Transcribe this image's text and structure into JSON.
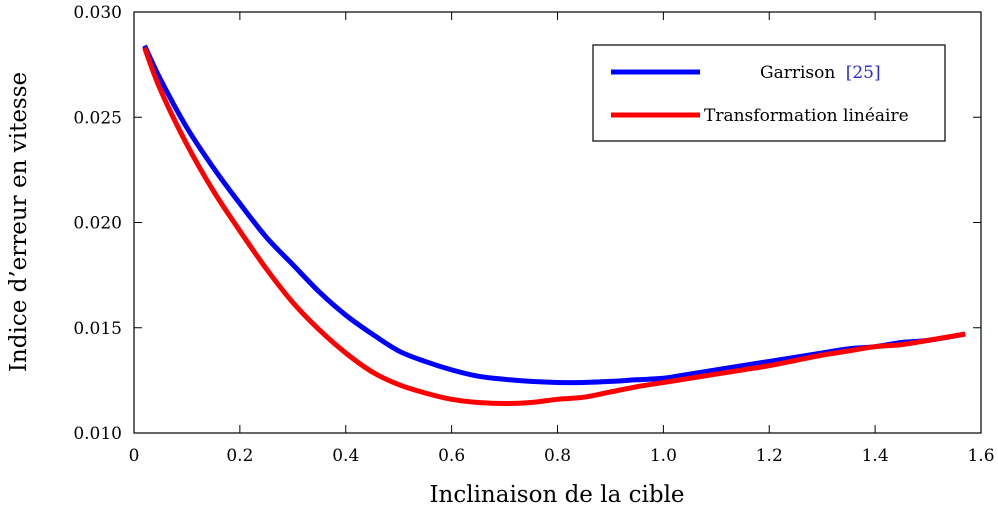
{
  "chart_data": {
    "type": "line",
    "xlabel": "Inclinaison de la cible",
    "ylabel": "Indice d’erreur en vitesse",
    "xlim": [
      0,
      1.6
    ],
    "ylim": [
      0.01,
      0.03
    ],
    "x_ticks": [
      "0",
      "0.2",
      "0.4",
      "0.6",
      "0.8",
      "1.0",
      "1.2",
      "1.4",
      "1.6"
    ],
    "y_ticks": [
      "0.010",
      "0.015",
      "0.020",
      "0.025",
      "0.030"
    ],
    "grid": false,
    "legend_position": "top-right",
    "series": [
      {
        "name": "Garrison",
        "reference": "[25]",
        "color": "#0000ff",
        "x": [
          0.02,
          0.05,
          0.1,
          0.15,
          0.2,
          0.25,
          0.3,
          0.35,
          0.4,
          0.45,
          0.5,
          0.55,
          0.6,
          0.65,
          0.7,
          0.75,
          0.8,
          0.85,
          0.9,
          0.95,
          1.0,
          1.05,
          1.1,
          1.15,
          1.2,
          1.25,
          1.3,
          1.35,
          1.4,
          1.45,
          1.5,
          1.57
        ],
        "y": [
          0.0284,
          0.0268,
          0.0245,
          0.0226,
          0.0209,
          0.0193,
          0.018,
          0.0167,
          0.0156,
          0.0147,
          0.0139,
          0.0134,
          0.013,
          0.0127,
          0.01255,
          0.01245,
          0.0124,
          0.0124,
          0.01245,
          0.01253,
          0.0126,
          0.0128,
          0.013,
          0.0132,
          0.0134,
          0.0136,
          0.0138,
          0.014,
          0.0141,
          0.0143,
          0.0144,
          0.0147
        ]
      },
      {
        "name": "Transformation linéaire",
        "color": "#ff0000",
        "x": [
          0.02,
          0.05,
          0.1,
          0.15,
          0.2,
          0.25,
          0.3,
          0.35,
          0.4,
          0.45,
          0.5,
          0.55,
          0.6,
          0.65,
          0.7,
          0.75,
          0.8,
          0.85,
          0.9,
          0.95,
          1.0,
          1.05,
          1.1,
          1.15,
          1.2,
          1.25,
          1.3,
          1.35,
          1.4,
          1.45,
          1.5,
          1.57
        ],
        "y": [
          0.0283,
          0.0263,
          0.0237,
          0.0215,
          0.0196,
          0.0178,
          0.0162,
          0.0149,
          0.0138,
          0.0129,
          0.0123,
          0.0119,
          0.0116,
          0.01145,
          0.0114,
          0.01145,
          0.0116,
          0.0117,
          0.01195,
          0.0122,
          0.0124,
          0.0126,
          0.0128,
          0.013,
          0.0132,
          0.01345,
          0.0137,
          0.0139,
          0.0141,
          0.0142,
          0.0144,
          0.0147
        ]
      }
    ]
  }
}
